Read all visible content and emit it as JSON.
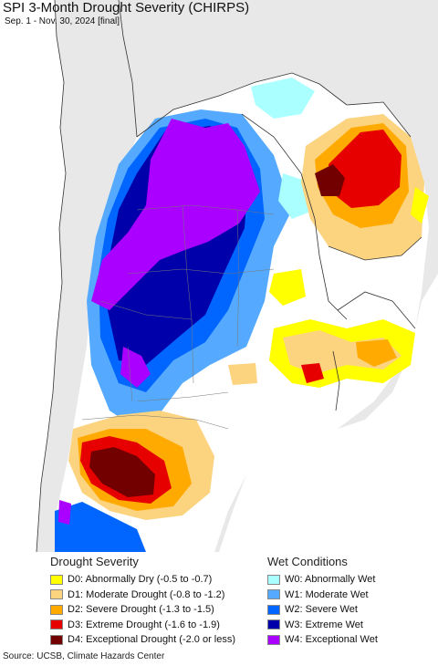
{
  "map": {
    "title": "SPI 3-Month Drought Severity (CHIRPS)",
    "subtitle": "Sep. 1 - Nov. 30, 2024 [final]",
    "source": "Source: UCSB, Climate Hazards Center"
  },
  "legend": {
    "drought": {
      "title": "Drought Severity",
      "items": [
        {
          "label": "D0: Abnormally Dry (-0.5 to -0.7)",
          "color": "#ffff00"
        },
        {
          "label": "D1: Moderate Drought (-0.8 to -1.2)",
          "color": "#fcd37f"
        },
        {
          "label": "D2: Severe Drought (-1.3 to -1.5)",
          "color": "#ffaa00"
        },
        {
          "label": "D3: Extreme Drought (-1.6 to -1.9)",
          "color": "#e60000"
        },
        {
          "label": "D4: Exceptional Drought (-2.0 or less)",
          "color": "#730000"
        }
      ]
    },
    "wet": {
      "title": "Wet Conditions",
      "items": [
        {
          "label": "W0: Abnormally Wet",
          "color": "#aaffff"
        },
        {
          "label": "W1: Moderate Wet",
          "color": "#55aaff"
        },
        {
          "label": "W2: Severe Wet",
          "color": "#0066ff"
        },
        {
          "label": "W3: Extreme Wet",
          "color": "#0000aa"
        },
        {
          "label": "W4: Exceptional Wet",
          "color": "#aa00ff"
        }
      ]
    }
  }
}
